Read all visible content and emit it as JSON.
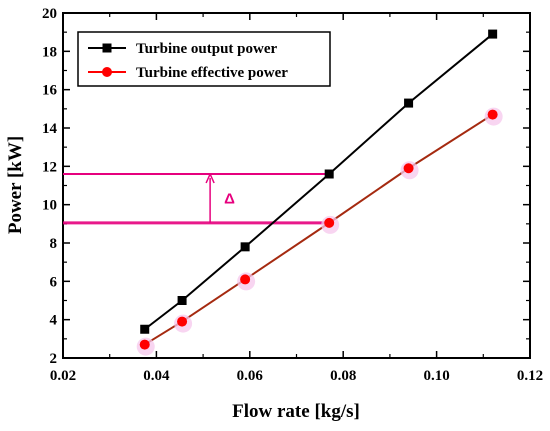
{
  "chart_data": {
    "type": "line",
    "xlabel": "Flow rate [kg/s]",
    "ylabel": "Power [kW]",
    "xlim": [
      0.02,
      0.12
    ],
    "ylim": [
      2,
      20
    ],
    "xticks": [
      "0.02",
      "0.04",
      "0.06",
      "0.08",
      "0.10",
      "0.12"
    ],
    "yticks": [
      "2",
      "4",
      "6",
      "8",
      "10",
      "12",
      "14",
      "16",
      "18",
      "20"
    ],
    "grid": false,
    "legend_position": "top-left",
    "series": [
      {
        "name": "Turbine output power",
        "color": "#000000",
        "marker": "square",
        "x": [
          0.0375,
          0.0455,
          0.059,
          0.077,
          0.094,
          0.112
        ],
        "y": [
          3.5,
          5.0,
          7.8,
          11.6,
          15.3,
          18.9
        ]
      },
      {
        "name": "Turbine effective power",
        "color": "#ff0000",
        "marker": "circle",
        "x": [
          0.0375,
          0.0455,
          0.059,
          0.077,
          0.094,
          0.112
        ],
        "y": [
          2.7,
          3.9,
          6.1,
          9.05,
          11.9,
          14.7
        ]
      }
    ],
    "annotation": {
      "label": "Δ",
      "color": "#e6007e",
      "upper_y": 11.6,
      "lower_y": 9.05,
      "arrow_x": 0.0515
    }
  }
}
